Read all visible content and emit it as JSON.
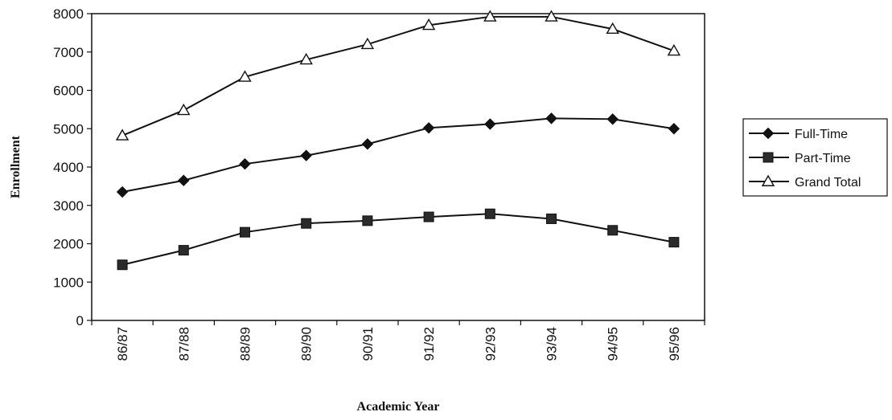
{
  "chart_data": {
    "type": "line",
    "title": "",
    "xlabel": "Academic Year",
    "ylabel": "Enrollment",
    "ylim": [
      0,
      8000
    ],
    "yticks": [
      0,
      1000,
      2000,
      3000,
      4000,
      5000,
      6000,
      7000,
      8000
    ],
    "categories": [
      "86/87",
      "87/88",
      "88/89",
      "89/90",
      "90/91",
      "91/92",
      "92/93",
      "93/94",
      "94/95",
      "95/96"
    ],
    "grid": false,
    "legend_position": "right",
    "series": [
      {
        "name": "Full-Time",
        "marker": "diamond",
        "values": [
          3350,
          3650,
          4080,
          4300,
          4600,
          5020,
          5120,
          5270,
          5250,
          5000
        ]
      },
      {
        "name": "Part-Time",
        "marker": "square",
        "values": [
          1450,
          1830,
          2300,
          2530,
          2600,
          2700,
          2780,
          2650,
          2350,
          2040
        ]
      },
      {
        "name": "Grand Total",
        "marker": "triangle",
        "values": [
          4820,
          5480,
          6350,
          6800,
          7200,
          7700,
          7920,
          7920,
          7600,
          7030
        ]
      }
    ]
  }
}
